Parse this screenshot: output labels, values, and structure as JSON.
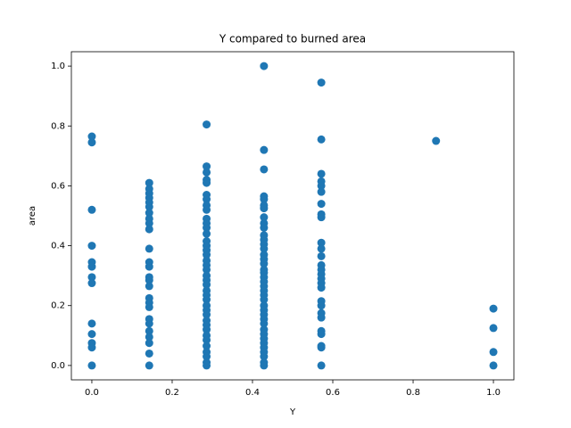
{
  "chart_data": {
    "type": "scatter",
    "title": "Y compared to burned area",
    "x_label": "Y",
    "y_label": "area",
    "color": "#1f77b4",
    "x": [
      0,
      0,
      0,
      0,
      0,
      0,
      0,
      0,
      0,
      0,
      0,
      0,
      0,
      0.1429,
      0.1429,
      0.1429,
      0.1429,
      0.1429,
      0.1429,
      0.1429,
      0.1429,
      0.1429,
      0.1429,
      0.1429,
      0.1429,
      0.1429,
      0.1429,
      0.1429,
      0.1429,
      0.1429,
      0.1429,
      0.1429,
      0.1429,
      0.1429,
      0.1429,
      0.1429,
      0.1429,
      0.1429,
      0.1429,
      0.2857,
      0.2857,
      0.2857,
      0.2857,
      0.2857,
      0.2857,
      0.2857,
      0.2857,
      0.2857,
      0.2857,
      0.2857,
      0.2857,
      0.2857,
      0.2857,
      0.2857,
      0.2857,
      0.2857,
      0.2857,
      0.2857,
      0.2857,
      0.2857,
      0.2857,
      0.2857,
      0.2857,
      0.2857,
      0.2857,
      0.2857,
      0.2857,
      0.2857,
      0.2857,
      0.2857,
      0.2857,
      0.2857,
      0.2857,
      0.2857,
      0.2857,
      0.2857,
      0.2857,
      0.2857,
      0.4286,
      0.4286,
      0.4286,
      0.4286,
      0.4286,
      0.4286,
      0.4286,
      0.4286,
      0.4286,
      0.4286,
      0.4286,
      0.4286,
      0.4286,
      0.4286,
      0.4286,
      0.4286,
      0.4286,
      0.4286,
      0.4286,
      0.4286,
      0.4286,
      0.4286,
      0.4286,
      0.4286,
      0.4286,
      0.4286,
      0.4286,
      0.4286,
      0.4286,
      0.4286,
      0.4286,
      0.4286,
      0.4286,
      0.4286,
      0.4286,
      0.4286,
      0.4286,
      0.4286,
      0.4286,
      0.5714,
      0.5714,
      0.5714,
      0.5714,
      0.5714,
      0.5714,
      0.5714,
      0.5714,
      0.5714,
      0.5714,
      0.5714,
      0.5714,
      0.5714,
      0.5714,
      0.5714,
      0.5714,
      0.5714,
      0.5714,
      0.5714,
      0.5714,
      0.5714,
      0.5714,
      0.5714,
      0.5714,
      0.5714,
      0.5714,
      0.5714,
      0.8571,
      1,
      1,
      1,
      1
    ],
    "values": [
      0.765,
      0.745,
      0.52,
      0.4,
      0.345,
      0.33,
      0.295,
      0.275,
      0.14,
      0.105,
      0.075,
      0.06,
      0.0,
      0.61,
      0.59,
      0.575,
      0.56,
      0.545,
      0.53,
      0.51,
      0.49,
      0.475,
      0.455,
      0.39,
      0.345,
      0.33,
      0.295,
      0.285,
      0.265,
      0.225,
      0.21,
      0.195,
      0.155,
      0.14,
      0.115,
      0.095,
      0.075,
      0.04,
      0.0,
      0.805,
      0.665,
      0.645,
      0.62,
      0.61,
      0.57,
      0.555,
      0.535,
      0.52,
      0.49,
      0.475,
      0.46,
      0.44,
      0.415,
      0.4,
      0.385,
      0.37,
      0.35,
      0.335,
      0.32,
      0.3,
      0.285,
      0.27,
      0.25,
      0.235,
      0.22,
      0.2,
      0.185,
      0.17,
      0.15,
      0.135,
      0.12,
      0.1,
      0.085,
      0.065,
      0.045,
      0.03,
      0.01,
      0.0,
      1.0,
      0.72,
      0.655,
      0.565,
      0.555,
      0.535,
      0.525,
      0.495,
      0.475,
      0.46,
      0.435,
      0.42,
      0.405,
      0.39,
      0.37,
      0.355,
      0.34,
      0.32,
      0.31,
      0.295,
      0.28,
      0.265,
      0.25,
      0.235,
      0.22,
      0.2,
      0.185,
      0.17,
      0.155,
      0.14,
      0.12,
      0.105,
      0.09,
      0.075,
      0.06,
      0.045,
      0.03,
      0.01,
      0.0,
      0.945,
      0.755,
      0.64,
      0.615,
      0.6,
      0.58,
      0.54,
      0.505,
      0.495,
      0.41,
      0.39,
      0.365,
      0.335,
      0.32,
      0.305,
      0.29,
      0.275,
      0.26,
      0.215,
      0.2,
      0.175,
      0.16,
      0.115,
      0.105,
      0.065,
      0.06,
      0.0,
      0.75,
      0.19,
      0.125,
      0.045,
      0.0
    ],
    "xlim": [
      -0.051,
      1.051
    ],
    "ylim": [
      -0.048,
      1.048
    ],
    "xticks": [
      {
        "value": 0,
        "label": "0.0"
      },
      0.2,
      0.4,
      0.6,
      0.8,
      {
        "value": 1,
        "label": "1.0"
      }
    ],
    "yticks": [
      {
        "value": 0,
        "label": "0.0"
      },
      0.2,
      0.4,
      0.6,
      0.8,
      {
        "value": 1,
        "label": "1.0"
      }
    ],
    "grid": false
  }
}
